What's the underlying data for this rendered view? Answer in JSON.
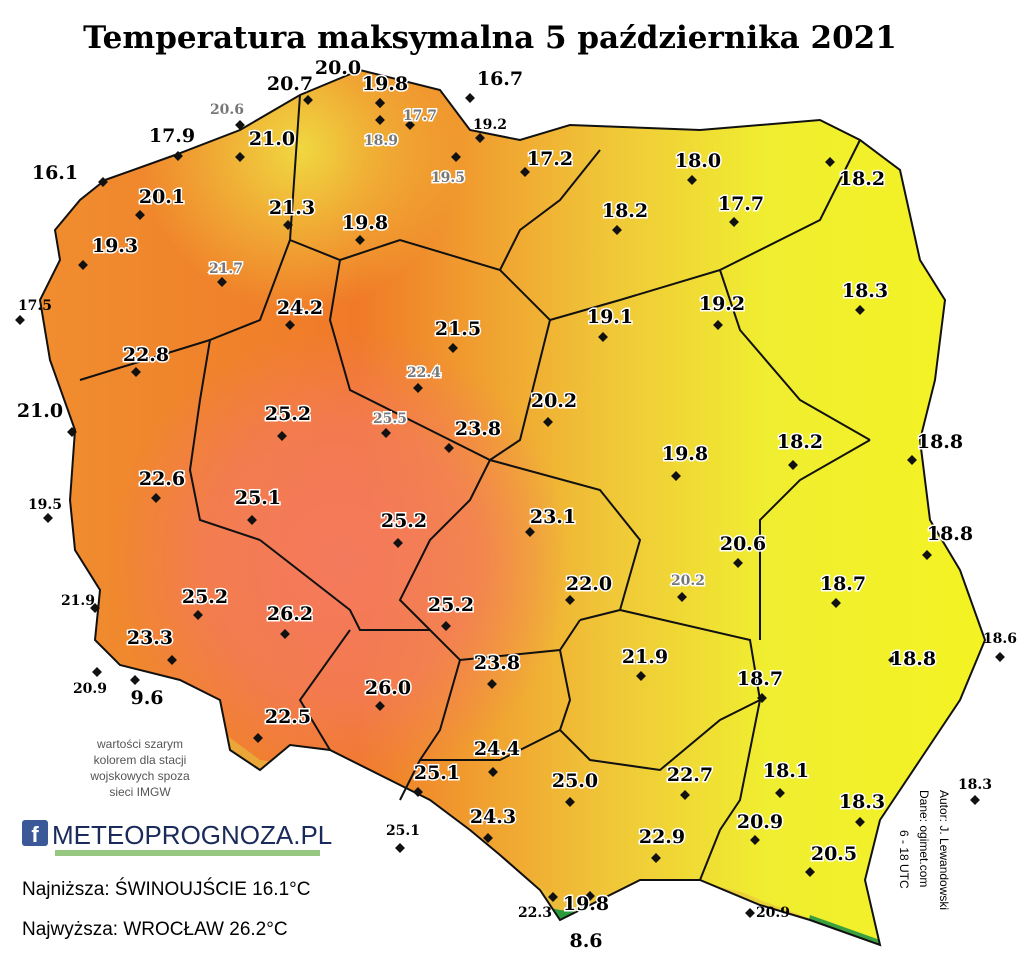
{
  "title": "Temperatura maksymalna 5 października 2021",
  "stations": [
    {
      "value": "20.7",
      "style": "main"
    },
    {
      "value": "20.0",
      "style": "main"
    },
    {
      "value": "19.8",
      "style": "main"
    },
    {
      "value": "16.7",
      "style": "main"
    },
    {
      "value": "20.6",
      "style": "gray"
    },
    {
      "value": "17.7",
      "style": "gray"
    },
    {
      "value": "19.2",
      "style": "small"
    },
    {
      "value": "18.9",
      "style": "gray"
    },
    {
      "value": "17.9",
      "style": "main"
    },
    {
      "value": "21.0",
      "style": "main"
    },
    {
      "value": "19.5",
      "style": "gray"
    },
    {
      "value": "17.2",
      "style": "main"
    },
    {
      "value": "18.0",
      "style": "main"
    },
    {
      "value": "18.2",
      "style": "main"
    },
    {
      "value": "16.1",
      "style": "main"
    },
    {
      "value": "20.1",
      "style": "main"
    },
    {
      "value": "21.3",
      "style": "main"
    },
    {
      "value": "19.8",
      "style": "main"
    },
    {
      "value": "18.2",
      "style": "main"
    },
    {
      "value": "17.7",
      "style": "main"
    },
    {
      "value": "19.3",
      "style": "main"
    },
    {
      "value": "21.7",
      "style": "gray"
    },
    {
      "value": "18.3",
      "style": "main"
    },
    {
      "value": "17.5",
      "style": "small"
    },
    {
      "value": "24.2",
      "style": "main"
    },
    {
      "value": "21.5",
      "style": "main"
    },
    {
      "value": "19.1",
      "style": "main"
    },
    {
      "value": "19.2",
      "style": "main"
    },
    {
      "value": "22.8",
      "style": "main"
    },
    {
      "value": "22.4",
      "style": "gray"
    },
    {
      "value": "21.0",
      "style": "main"
    },
    {
      "value": "25.2",
      "style": "main"
    },
    {
      "value": "25.5",
      "style": "gray"
    },
    {
      "value": "23.8",
      "style": "main"
    },
    {
      "value": "20.2",
      "style": "main"
    },
    {
      "value": "18.2",
      "style": "main"
    },
    {
      "value": "18.8",
      "style": "main"
    },
    {
      "value": "19.8",
      "style": "main"
    },
    {
      "value": "22.6",
      "style": "main"
    },
    {
      "value": "19.5",
      "style": "small"
    },
    {
      "value": "25.1",
      "style": "main"
    },
    {
      "value": "25.2",
      "style": "main"
    },
    {
      "value": "23.1",
      "style": "main"
    },
    {
      "value": "18.8",
      "style": "main"
    },
    {
      "value": "20.6",
      "style": "main"
    },
    {
      "value": "22.0",
      "style": "main"
    },
    {
      "value": "20.2",
      "style": "gray"
    },
    {
      "value": "18.7",
      "style": "main"
    },
    {
      "value": "21.9",
      "style": "small"
    },
    {
      "value": "25.2",
      "style": "main"
    },
    {
      "value": "26.2",
      "style": "main"
    },
    {
      "value": "25.2",
      "style": "main"
    },
    {
      "value": "18.6",
      "style": "small"
    },
    {
      "value": "23.3",
      "style": "main"
    },
    {
      "value": "21.9",
      "style": "main"
    },
    {
      "value": "18.8",
      "style": "main"
    },
    {
      "value": "23.8",
      "style": "main"
    },
    {
      "value": "18.7",
      "style": "main"
    },
    {
      "value": "20.9",
      "style": "small"
    },
    {
      "value": "9.6",
      "style": "main"
    },
    {
      "value": "26.0",
      "style": "main"
    },
    {
      "value": "22.5",
      "style": "main"
    },
    {
      "value": "24.4",
      "style": "main"
    },
    {
      "value": "25.1",
      "style": "main"
    },
    {
      "value": "25.0",
      "style": "main"
    },
    {
      "value": "22.7",
      "style": "main"
    },
    {
      "value": "18.1",
      "style": "main"
    },
    {
      "value": "18.3",
      "style": "small"
    },
    {
      "value": "18.3",
      "style": "main"
    },
    {
      "value": "20.9",
      "style": "main"
    },
    {
      "value": "24.3",
      "style": "main"
    },
    {
      "value": "25.1",
      "style": "small"
    },
    {
      "value": "20.5",
      "style": "main"
    },
    {
      "value": "22.9",
      "style": "main"
    },
    {
      "value": "22.3",
      "style": "small"
    },
    {
      "value": "19.8",
      "style": "main"
    },
    {
      "value": "8.6",
      "style": "main"
    },
    {
      "value": "20.9",
      "style": "small"
    }
  ],
  "note": [
    "wartości szarym",
    "kolorem dla stacji",
    "wojskowych spoza",
    "sieci IMGW"
  ],
  "logo": "METEOPROGNOZA.PL",
  "lowest": "Najniższa: ŚWINOUJŚCIE 16.1°C",
  "highest": "Najwyższa: WROCŁAW 26.2°C",
  "credits": [
    "Autor: J. Lewandowski",
    "Dane: ogimet.com",
    "6 - 18 UTC"
  ]
}
